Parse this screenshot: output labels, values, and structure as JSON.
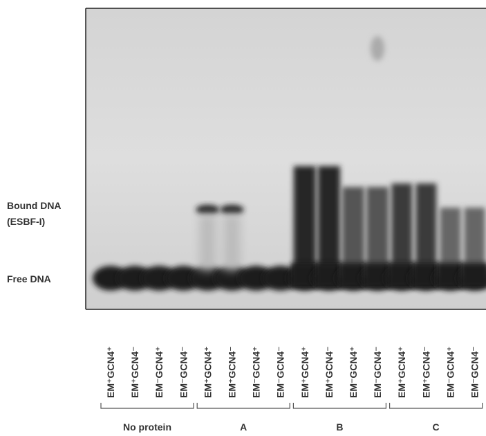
{
  "side_labels": {
    "bound": "Bound DNA",
    "bound_sub": "(ESBF-I)",
    "free": "Free DNA"
  },
  "lanes": [
    "EM⁺GCN4⁺",
    "EM⁺GCN4⁻",
    "EM⁻GCN4⁺",
    "EM⁻GCN4⁻",
    "EM⁺GCN4⁺",
    "EM⁺GCN4⁻",
    "EM⁻GCN4⁺",
    "EM⁻GCN4⁻",
    "EM⁺GCN4⁺",
    "EM⁺GCN4⁻",
    "EM⁻GCN4⁺",
    "EM⁻GCN4⁻",
    "EM⁺GCN4⁺",
    "EM⁺GCN4⁻",
    "EM⁻GCN4⁺",
    "EM⁻GCN4⁻"
  ],
  "groups": [
    "No protein",
    "A",
    "B",
    "C"
  ]
}
